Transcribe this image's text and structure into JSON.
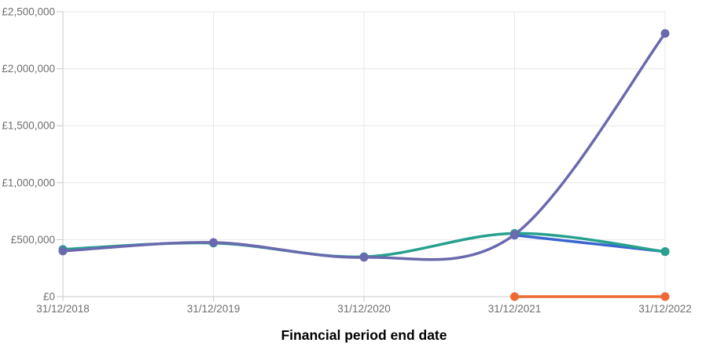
{
  "chart_data": {
    "type": "line",
    "title": "",
    "xlabel": "Financial period end date",
    "ylabel": "",
    "x_tick_labels": [
      "31/12/2018",
      "31/12/2019",
      "31/12/2020",
      "31/12/2021",
      "31/12/2022"
    ],
    "y_tick_labels": [
      "£0",
      "£500,000",
      "£1,000,000",
      "£1,500,000",
      "£2,000,000",
      "£2,500,000"
    ],
    "y_tick_values": [
      0,
      500000,
      1000000,
      1500000,
      2000000,
      2500000
    ],
    "ylim": [
      0,
      2500000
    ],
    "grid": true,
    "legend_position": "none",
    "curve": "smooth",
    "series": [
      {
        "name": "purple-series",
        "color": "#6a69ae",
        "values": [
          400000,
          475000,
          345000,
          545000,
          2310000
        ]
      },
      {
        "name": "teal-series",
        "color": "#27a08e",
        "values": [
          415000,
          470000,
          350000,
          555000,
          395000
        ]
      },
      {
        "name": "blue-series",
        "color": "#3b65cf",
        "values": [
          null,
          null,
          null,
          540000,
          395000
        ]
      },
      {
        "name": "orange-series",
        "color": "#ed6a31",
        "values": [
          null,
          null,
          null,
          0,
          0
        ]
      }
    ],
    "colors": {
      "grid": "#e7e7e7",
      "axis": "#c9c9c9",
      "tick_label": "#6e6e6e",
      "axis_title": "#0c0c0c"
    }
  }
}
